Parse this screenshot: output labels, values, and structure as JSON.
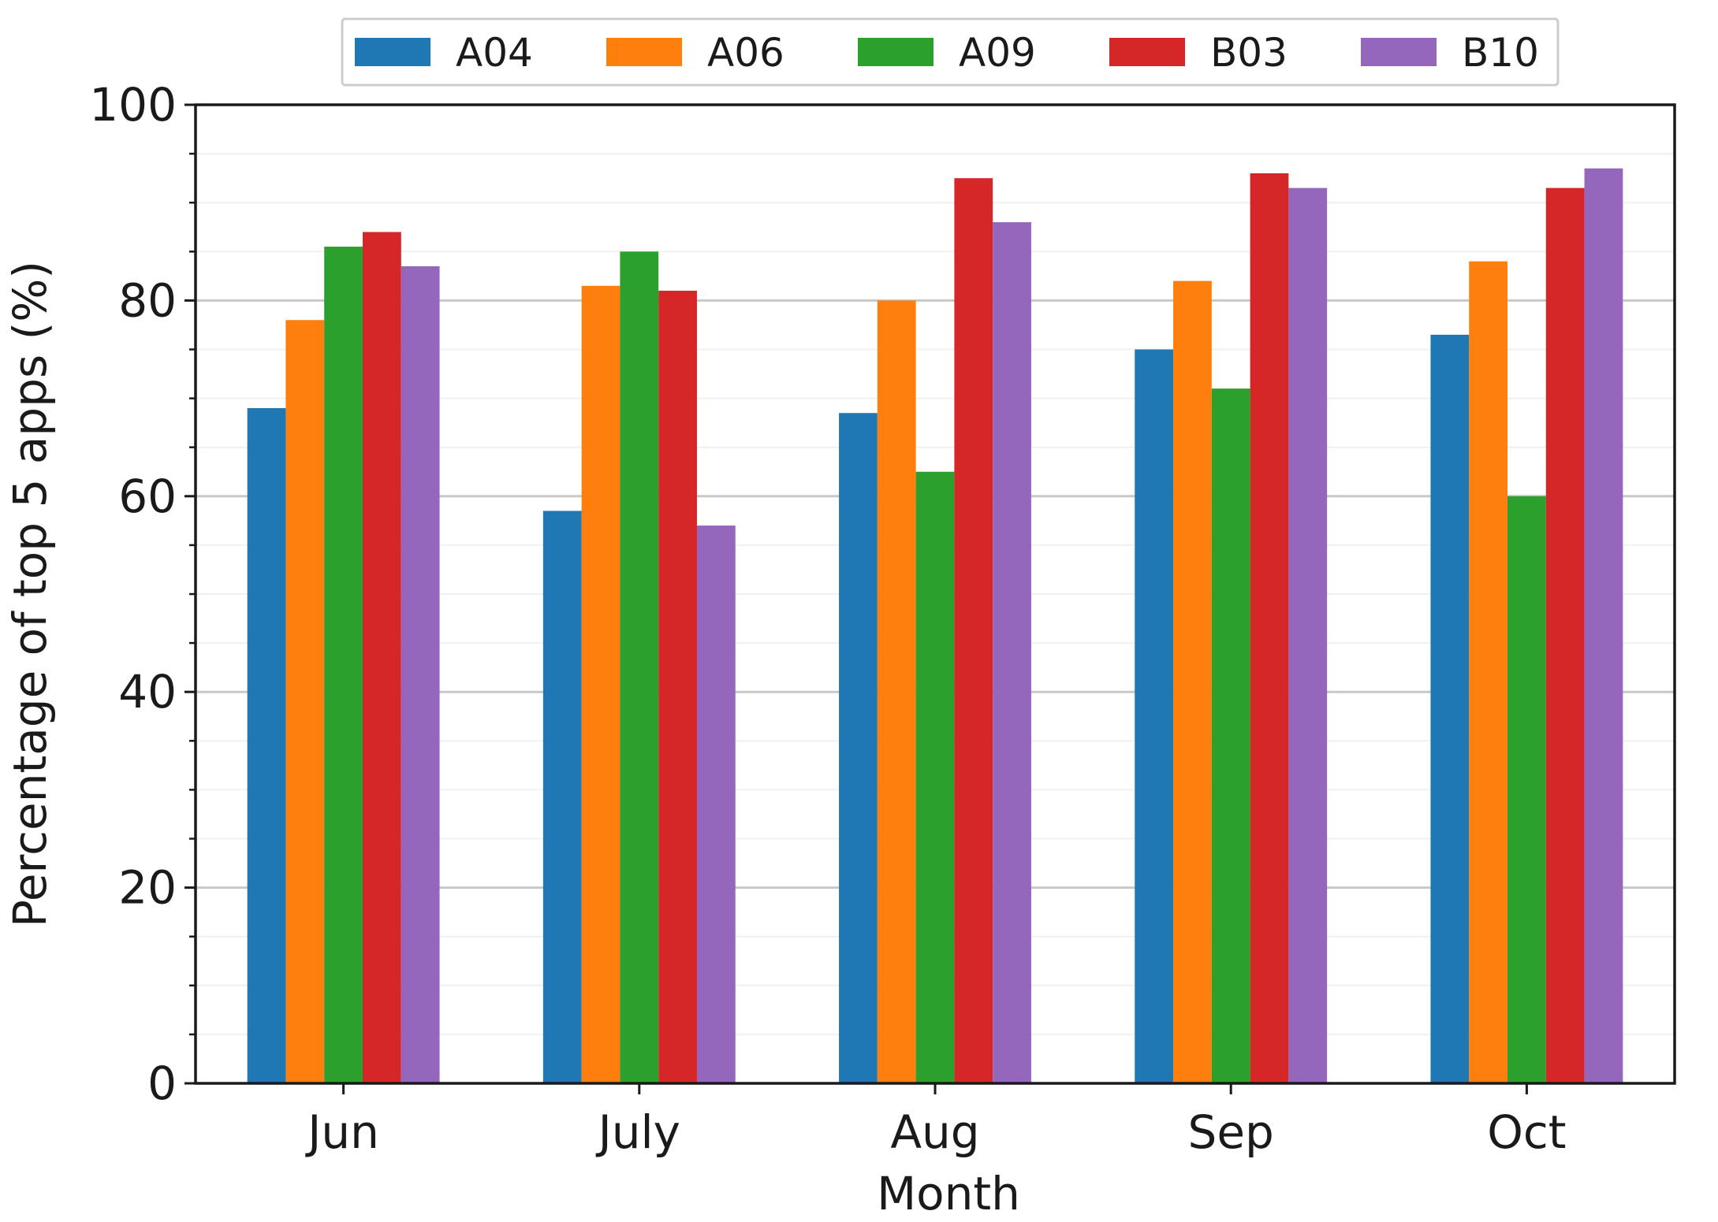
{
  "chart_data": {
    "type": "bar",
    "title": "",
    "xlabel": "Month",
    "ylabel": "Percentage of top 5 apps (%)",
    "categories": [
      "Jun",
      "July",
      "Aug",
      "Sep",
      "Oct"
    ],
    "series": [
      {
        "name": "A04",
        "color": "#1f77b4",
        "values": [
          69.0,
          58.5,
          68.5,
          75.0,
          76.5
        ]
      },
      {
        "name": "A06",
        "color": "#ff7f0e",
        "values": [
          78.0,
          81.5,
          80.0,
          82.0,
          84.0
        ]
      },
      {
        "name": "A09",
        "color": "#2ca02c",
        "values": [
          85.5,
          85.0,
          62.5,
          71.0,
          60.0
        ]
      },
      {
        "name": "B03",
        "color": "#d62728",
        "values": [
          87.0,
          81.0,
          92.5,
          93.0,
          91.5
        ]
      },
      {
        "name": "B10",
        "color": "#9467bd",
        "values": [
          83.5,
          57.0,
          88.0,
          91.5,
          93.5
        ]
      }
    ],
    "ylim": [
      0,
      100
    ],
    "yticks": [
      "0",
      "20",
      "40",
      "60",
      "80",
      "100"
    ],
    "y_minor_step": 5,
    "grid": true,
    "legend_position": "top-center"
  }
}
